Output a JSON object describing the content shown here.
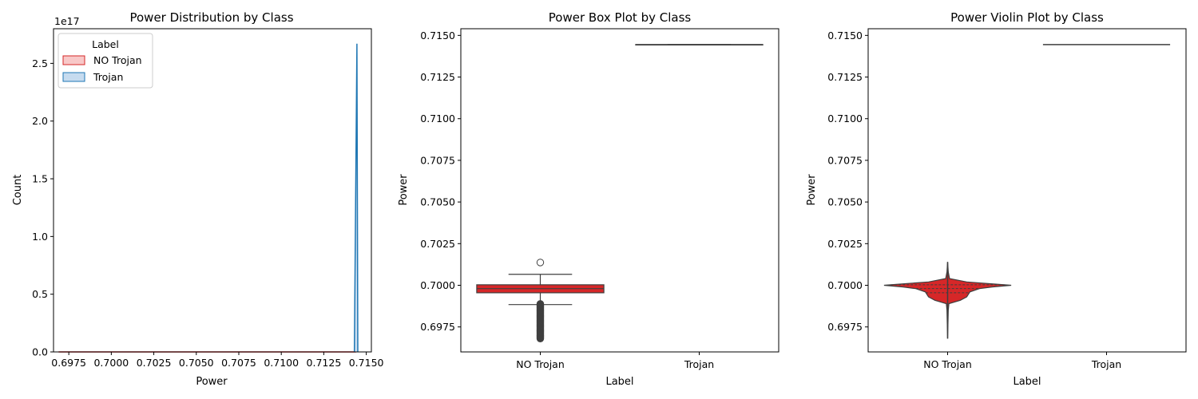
{
  "chart_data": [
    {
      "type": "area",
      "title": "Power Distribution by Class",
      "xlabel": "Power",
      "ylabel": "Count",
      "y_offset_text": "1e17",
      "xlim": [
        0.6966,
        0.7153
      ],
      "ylim": [
        0,
        2.8
      ],
      "xticks": [
        0.6975,
        0.7,
        0.7025,
        0.705,
        0.7075,
        0.71,
        0.7125,
        0.715
      ],
      "xtick_labels": [
        "0.6975",
        "0.7000",
        "0.7025",
        "0.7050",
        "0.7075",
        "0.7100",
        "0.7125",
        "0.7150"
      ],
      "yticks": [
        0,
        0.5,
        1.0,
        1.5,
        2.0,
        2.5
      ],
      "ytick_labels": [
        "0.0",
        "0.5",
        "1.0",
        "1.5",
        "2.0",
        "2.5"
      ],
      "grid": false,
      "legend": {
        "title": "Label",
        "position": "top-left"
      },
      "series": [
        {
          "name": "NO Trojan",
          "color": "#d62728",
          "fill": "#f8c8c8",
          "x": [
            0.6969,
            0.6985,
            0.7,
            0.7015,
            0.7144
          ],
          "y": [
            0,
            0,
            0,
            0,
            0
          ]
        },
        {
          "name": "Trojan",
          "color": "#1f77b4",
          "fill": "#c6dbef",
          "x": [
            0.7143,
            0.71445,
            0.7145
          ],
          "y": [
            0,
            2.67,
            0
          ]
        }
      ]
    },
    {
      "type": "box",
      "title": "Power Box Plot by Class",
      "xlabel": "Label",
      "ylabel": "Power",
      "categories": [
        "NO Trojan",
        "Trojan"
      ],
      "ylim": [
        0.696,
        0.7154
      ],
      "yticks": [
        0.6975,
        0.7,
        0.7025,
        0.705,
        0.7075,
        0.71,
        0.7125,
        0.715
      ],
      "ytick_labels": [
        "0.6975",
        "0.7000",
        "0.7025",
        "0.7050",
        "0.7075",
        "0.7100",
        "0.7125",
        "0.7150"
      ],
      "grid": false,
      "boxes": [
        {
          "category": "NO Trojan",
          "color": "#d62728",
          "whisker_low": 0.69884,
          "q1": 0.69955,
          "median": 0.6998,
          "q3": 0.70003,
          "whisker_high": 0.70066,
          "outliers_high": [
            0.70137
          ],
          "outliers_low_range": [
            0.6968,
            0.69888
          ]
        },
        {
          "category": "Trojan",
          "color": "#1f77b4",
          "whisker_low": 0.71445,
          "q1": 0.71445,
          "median": 0.71445,
          "q3": 0.71445,
          "whisker_high": 0.71445,
          "outliers_high": [],
          "outliers_low_range": []
        }
      ]
    },
    {
      "type": "violin",
      "title": "Power Violin Plot by Class",
      "xlabel": "Label",
      "ylabel": "Power",
      "categories": [
        "NO Trojan",
        "Trojan"
      ],
      "ylim": [
        0.696,
        0.7154
      ],
      "yticks": [
        0.6975,
        0.7,
        0.7025,
        0.705,
        0.7075,
        0.71,
        0.7125,
        0.715
      ],
      "ytick_labels": [
        "0.6975",
        "0.7000",
        "0.7025",
        "0.7050",
        "0.7075",
        "0.7100",
        "0.7125",
        "0.7150"
      ],
      "grid": false,
      "violins": [
        {
          "category": "NO Trojan",
          "color": "#d62728",
          "profile": [
            [
              0.6968,
              0.0
            ],
            [
              0.6985,
              0.01
            ],
            [
              0.6989,
              0.02
            ],
            [
              0.6991,
              0.2
            ],
            [
              0.6993,
              0.3
            ],
            [
              0.6996,
              0.35
            ],
            [
              0.6998,
              0.5
            ],
            [
              0.6999,
              0.7
            ],
            [
              0.7,
              1.0
            ],
            [
              0.7002,
              0.3
            ],
            [
              0.7004,
              0.03
            ],
            [
              0.7008,
              0.01
            ],
            [
              0.7014,
              0.0
            ]
          ],
          "quartiles": [
            0.69955,
            0.6998,
            0.70003
          ]
        },
        {
          "category": "Trojan",
          "color": "#1f77b4",
          "profile": [
            [
              0.71445,
              1.0
            ]
          ],
          "quartiles": []
        }
      ]
    }
  ]
}
